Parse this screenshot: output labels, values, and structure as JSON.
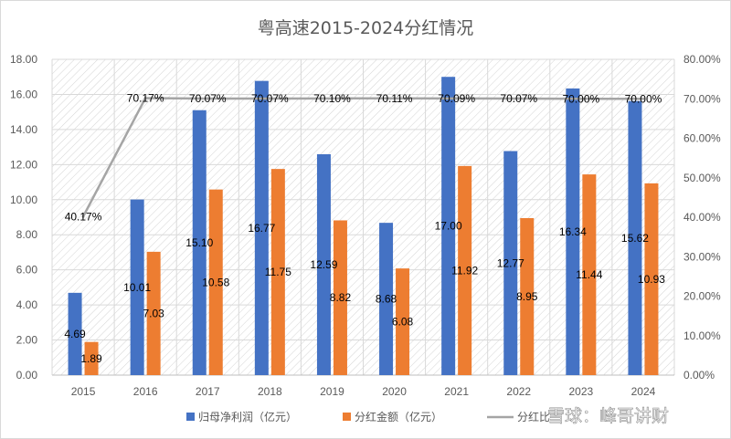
{
  "chart_data": {
    "type": "bar",
    "title": "粤高速2015-2024分红情况",
    "categories": [
      "2015",
      "2016",
      "2017",
      "2018",
      "2019",
      "2020",
      "2021",
      "2022",
      "2023",
      "2024"
    ],
    "series": [
      {
        "name": "归母净利润（亿元）",
        "type": "bar",
        "axis": "left",
        "color": "#4472C4",
        "values": [
          4.69,
          10.01,
          15.1,
          16.77,
          12.59,
          8.68,
          17.0,
          12.77,
          16.34,
          15.62
        ],
        "labels": [
          "4.69",
          "10.01",
          "15.10",
          "16.77",
          "12.59",
          "8.68",
          "17.00",
          "12.77",
          "16.34",
          "15.62"
        ]
      },
      {
        "name": "分红金额（亿元）",
        "type": "bar",
        "axis": "left",
        "color": "#ED7D31",
        "values": [
          1.89,
          7.03,
          10.58,
          11.75,
          8.82,
          6.08,
          11.92,
          8.95,
          11.44,
          10.93
        ],
        "labels": [
          "1.89",
          "7.03",
          "10.58",
          "11.75",
          "8.82",
          "6.08",
          "11.92",
          "8.95",
          "11.44",
          "10.93"
        ]
      },
      {
        "name": "分红比",
        "type": "line",
        "axis": "right",
        "color": "#A5A5A5",
        "values": [
          40.17,
          70.17,
          70.07,
          70.07,
          70.1,
          70.11,
          70.09,
          70.07,
          70.0,
          70.0
        ],
        "labels": [
          "40.17%",
          "70.17%",
          "70.07%",
          "70.07%",
          "70.10%",
          "70.11%",
          "70.09%",
          "70.07%",
          "70.00%",
          "70.00%"
        ]
      }
    ],
    "y_left": {
      "min": 0,
      "max": 18,
      "step": 2,
      "ticks": [
        "0.00",
        "2.00",
        "4.00",
        "6.00",
        "8.00",
        "10.00",
        "12.00",
        "14.00",
        "16.00",
        "18.00"
      ]
    },
    "y_right": {
      "min": 0,
      "max": 80,
      "step": 10,
      "ticks": [
        "0.00%",
        "10.00%",
        "20.00%",
        "30.00%",
        "40.00%",
        "50.00%",
        "60.00%",
        "70.00%",
        "80.00%"
      ]
    },
    "grid": true,
    "legend_position": "bottom",
    "legend_labels": [
      "归母净利润（亿元）",
      "分红金额（亿元）",
      "分红比"
    ]
  },
  "watermark": {
    "text": "雪球：峰哥讲财"
  }
}
